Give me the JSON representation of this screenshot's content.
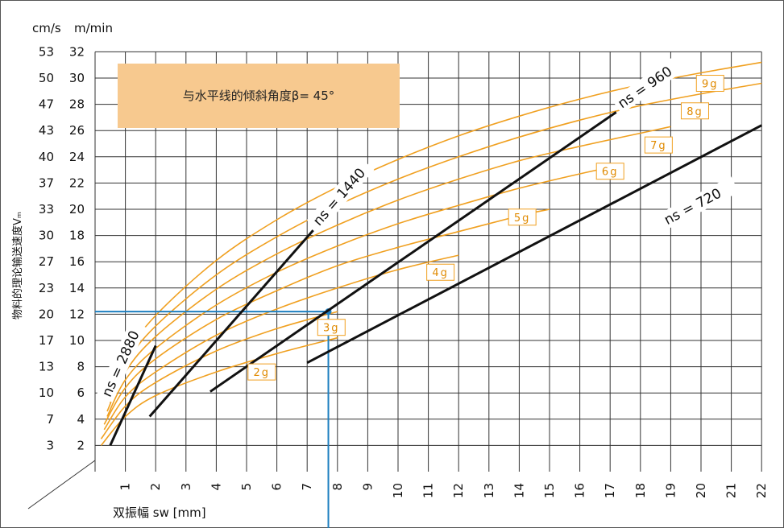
{
  "chart_data": {
    "type": "line",
    "title": "",
    "annotation": "与水平线的倾斜角度β= 45°",
    "xlabel": "双振幅 sw [mm]",
    "ylabel": "物料的理论输送速度Vₘ",
    "y_units": {
      "left": "cm/s",
      "right": "m/min"
    },
    "xlim": [
      0,
      22
    ],
    "x_ticks": [
      1,
      2,
      3,
      4,
      5,
      6,
      7,
      8,
      9,
      10,
      11,
      12,
      13,
      14,
      15,
      16,
      17,
      18,
      19,
      20,
      21,
      22
    ],
    "ylim_m_per_min": [
      0,
      32
    ],
    "y_ticks_m_per_min": [
      2,
      4,
      6,
      8,
      10,
      12,
      14,
      16,
      18,
      20,
      22,
      24,
      26,
      28,
      30,
      32
    ],
    "y_ticks_cm_per_s": [
      3,
      7,
      10,
      13,
      17,
      20,
      23,
      27,
      30,
      33,
      37,
      40,
      43,
      47,
      50,
      53
    ],
    "grid": true,
    "acceleration_curves": [
      {
        "name": "2g",
        "points": [
          [
            0.2,
            2.0
          ],
          [
            1,
            4.2
          ],
          [
            2,
            5.8
          ],
          [
            4,
            7.6
          ],
          [
            6,
            9.0
          ],
          [
            8,
            10.2
          ]
        ]
      },
      {
        "name": "3g",
        "points": [
          [
            0.2,
            2.5
          ],
          [
            1,
            5.0
          ],
          [
            2,
            6.8
          ],
          [
            4,
            9.2
          ],
          [
            6,
            10.9
          ],
          [
            8,
            12.2
          ]
        ]
      },
      {
        "name": "4g",
        "points": [
          [
            0.3,
            3.2
          ],
          [
            1,
            5.7
          ],
          [
            2,
            7.6
          ],
          [
            4,
            10.4
          ],
          [
            6,
            12.4
          ],
          [
            8,
            14.0
          ],
          [
            10,
            15.4
          ],
          [
            12,
            16.5
          ]
        ]
      },
      {
        "name": "5g",
        "points": [
          [
            0.3,
            3.6
          ],
          [
            1,
            6.4
          ],
          [
            2,
            8.6
          ],
          [
            4,
            11.6
          ],
          [
            6,
            13.8
          ],
          [
            8,
            15.7
          ],
          [
            10,
            17.1
          ],
          [
            12,
            18.3
          ],
          [
            14,
            19.5
          ],
          [
            15,
            20.0
          ]
        ]
      },
      {
        "name": "6g",
        "points": [
          [
            0.4,
            4.2
          ],
          [
            1,
            7.0
          ],
          [
            2,
            9.4
          ],
          [
            4,
            12.7
          ],
          [
            6,
            15.2
          ],
          [
            8,
            17.2
          ],
          [
            10,
            18.9
          ],
          [
            12,
            20.3
          ],
          [
            14,
            21.6
          ],
          [
            16,
            22.7
          ],
          [
            17,
            23.2
          ]
        ]
      },
      {
        "name": "7g",
        "points": [
          [
            0.4,
            4.6
          ],
          [
            1,
            7.6
          ],
          [
            2,
            10.3
          ],
          [
            4,
            13.9
          ],
          [
            6,
            16.6
          ],
          [
            8,
            18.8
          ],
          [
            10,
            20.7
          ],
          [
            12,
            22.3
          ],
          [
            14,
            23.7
          ],
          [
            16,
            24.8
          ],
          [
            18,
            25.8
          ],
          [
            19,
            26.3
          ]
        ]
      },
      {
        "name": "8g",
        "points": [
          [
            0.5,
            5.2
          ],
          [
            1,
            8.2
          ],
          [
            2,
            11.1
          ],
          [
            4,
            15.0
          ],
          [
            6,
            17.9
          ],
          [
            8,
            20.3
          ],
          [
            10,
            22.3
          ],
          [
            12,
            24.0
          ],
          [
            14,
            25.5
          ],
          [
            16,
            26.8
          ],
          [
            18,
            27.9
          ],
          [
            20,
            28.8
          ],
          [
            22,
            29.6
          ]
        ]
      },
      {
        "name": "9g",
        "points": [
          [
            0.5,
            5.6
          ],
          [
            1,
            8.8
          ],
          [
            2,
            11.9
          ],
          [
            4,
            16.1
          ],
          [
            6,
            19.2
          ],
          [
            8,
            21.7
          ],
          [
            10,
            23.8
          ],
          [
            12,
            25.6
          ],
          [
            14,
            27.1
          ],
          [
            16,
            28.4
          ],
          [
            18,
            29.5
          ],
          [
            20,
            30.4
          ],
          [
            22,
            31.2
          ]
        ]
      }
    ],
    "frequency_lines": [
      {
        "name": "ns = 2880",
        "points": [
          [
            0.5,
            2.0
          ],
          [
            2.0,
            9.6
          ]
        ]
      },
      {
        "name": "ns = 1440",
        "points": [
          [
            1.8,
            4.2
          ],
          [
            7.2,
            18.4
          ]
        ]
      },
      {
        "name": "ns = 960",
        "points": [
          [
            3.8,
            6.1
          ],
          [
            17.2,
            27.4
          ]
        ]
      },
      {
        "name": "ns = 720",
        "points": [
          [
            7.0,
            8.3
          ],
          [
            22.0,
            26.4
          ]
        ]
      }
    ],
    "reference_point": {
      "x": 7.7,
      "y_m_per_min": 12.2
    },
    "g_labels": [
      "2g",
      "3g",
      "4g",
      "5g",
      "6g",
      "7g",
      "8g",
      "9g"
    ],
    "colors": {
      "acceleration_curve": "#f0a020",
      "frequency_line": "#111111",
      "reference": "#1e7fc0",
      "annotation_box": "#f7c98f",
      "grid": "#333333"
    }
  }
}
